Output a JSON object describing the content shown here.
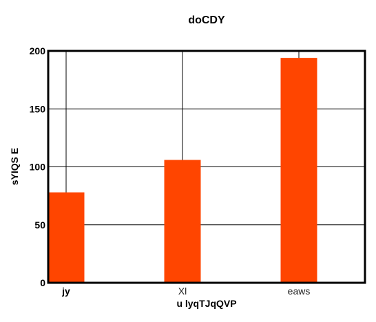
{
  "chart_data": {
    "type": "bar",
    "title": "doCDY",
    "xlabel": "u lyqTJqQVP",
    "ylabel": "sYIQS E",
    "categories": [
      "jy",
      "Xl",
      "eaws"
    ],
    "values": [
      78,
      106,
      194
    ],
    "ylim": [
      0,
      200
    ],
    "yticks": [
      0,
      50,
      100,
      150,
      200
    ],
    "grid": true,
    "colors": {
      "bar": "#ff4500",
      "grid": "#000000",
      "frame": "#000000"
    }
  }
}
